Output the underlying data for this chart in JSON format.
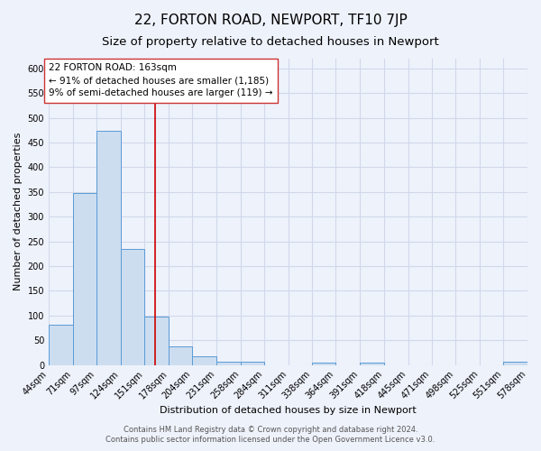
{
  "title": "22, FORTON ROAD, NEWPORT, TF10 7JP",
  "subtitle": "Size of property relative to detached houses in Newport",
  "xlabel": "Distribution of detached houses by size in Newport",
  "ylabel": "Number of detached properties",
  "bin_edges": [
    44,
    71,
    97,
    124,
    151,
    178,
    204,
    231,
    258,
    284,
    311,
    338,
    364,
    391,
    418,
    445,
    471,
    498,
    525,
    551,
    578
  ],
  "counts": [
    82,
    348,
    474,
    234,
    97,
    37,
    18,
    7,
    6,
    0,
    0,
    5,
    0,
    4,
    0,
    0,
    0,
    0,
    0,
    7
  ],
  "bar_color": "#ccddf0",
  "bar_edge_color": "#5b9bd5",
  "vline_x": 163,
  "vline_color": "#cc0000",
  "annotation_title": "22 FORTON ROAD: 163sqm",
  "annotation_line1": "← 91% of detached houses are smaller (1,185)",
  "annotation_line2": "9% of semi-detached houses are larger (119) →",
  "annotation_box_facecolor": "#ffffff",
  "annotation_box_edgecolor": "#cc3333",
  "ylim": [
    0,
    620
  ],
  "yticks": [
    0,
    50,
    100,
    150,
    200,
    250,
    300,
    350,
    400,
    450,
    500,
    550,
    600
  ],
  "footer1": "Contains HM Land Registry data © Crown copyright and database right 2024.",
  "footer2": "Contains public sector information licensed under the Open Government Licence v3.0.",
  "background_color": "#eef2fb",
  "grid_color": "#d0d8ea",
  "title_fontsize": 11,
  "subtitle_fontsize": 9.5,
  "axis_label_fontsize": 8,
  "tick_fontsize": 7,
  "annotation_fontsize": 7.5,
  "footer_fontsize": 6
}
